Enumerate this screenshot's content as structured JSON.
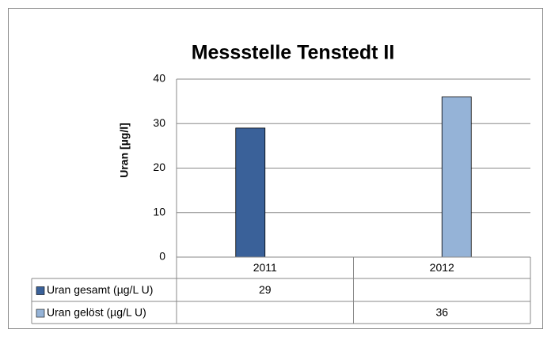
{
  "chart_data": {
    "type": "bar",
    "title": "Messstelle Tenstedt II",
    "y_label": "Uran [µg/l]",
    "categories": [
      "2011",
      "2012"
    ],
    "series": [
      {
        "name": "Uran gesamt (µg/L U)",
        "color": "#3a6199",
        "values": [
          29,
          null
        ]
      },
      {
        "name": "Uran gelöst (µg/L U)",
        "color": "#95b3d7",
        "values": [
          null,
          36
        ]
      }
    ],
    "ylim": [
      0,
      40
    ],
    "yticks": [
      0,
      10,
      20,
      30,
      40
    ],
    "grid": true,
    "data_table": true
  }
}
